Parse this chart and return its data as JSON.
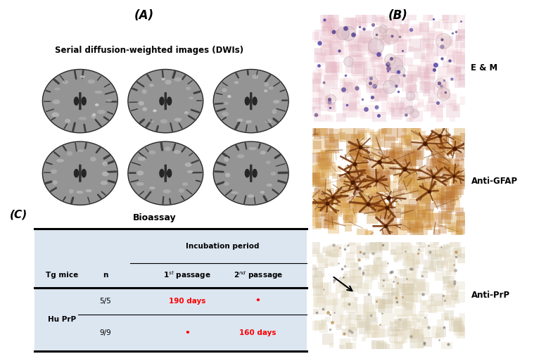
{
  "title_A": "(A)",
  "title_B": "(B)",
  "title_C": "(C)",
  "dwi_title": "Serial diffusion-weighted images (DWIs)",
  "bioassay_title": "Bioassay",
  "incubation_header": "Incubation period",
  "col_tg": "Tg mice",
  "col_n": "n",
  "row_tg_label": "Hu PrP",
  "row1_n": "5/5",
  "row1_p1": "190 days",
  "row1_p2": "•",
  "row2_n": "9/9",
  "row2_p1": "•",
  "row2_p2": "160 days",
  "label_em": "E & M",
  "label_gfap": "Anti-GFAP",
  "label_prp": "Anti-PrP",
  "red": "#FF0000",
  "black": "#000000",
  "white": "#ffffff",
  "table_bg": "#dce6f1",
  "em_bg": "#e8b0bb",
  "gfap_bg": "#c8883a",
  "prp_bg": "#d8c8a8",
  "brain_bg": "#111111",
  "brain_gray": "#a0a0a0",
  "brain_light": "#cccccc",
  "brain_dark": "#505050"
}
